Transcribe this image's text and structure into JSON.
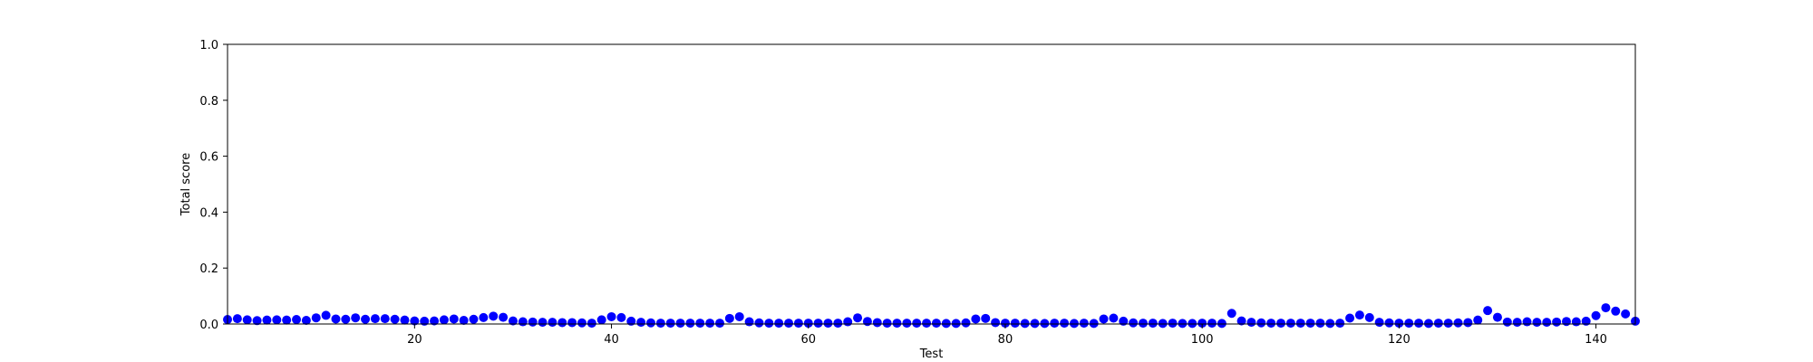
{
  "chart_data": {
    "type": "scatter",
    "xlabel": "Test",
    "ylabel": "Total score",
    "xlim": [
      1,
      144
    ],
    "ylim": [
      0,
      1.0
    ],
    "xticks": [
      20,
      40,
      60,
      80,
      100,
      120,
      140
    ],
    "xtick_labels": [
      "20",
      "40",
      "60",
      "80",
      "100",
      "120",
      "140"
    ],
    "yticks": [
      0,
      0.2,
      0.4,
      0.6,
      0.8,
      1.0
    ],
    "ytick_labels": [
      "0.0",
      "0.2",
      "0.4",
      "0.6",
      "0.8",
      "1.0"
    ],
    "grid": false,
    "colors": {
      "point": "#0000ff",
      "axes": "#000000"
    },
    "x": [
      1,
      2,
      3,
      4,
      5,
      6,
      7,
      8,
      9,
      10,
      11,
      12,
      13,
      14,
      15,
      16,
      17,
      18,
      19,
      20,
      21,
      22,
      23,
      24,
      25,
      26,
      27,
      28,
      29,
      30,
      31,
      32,
      33,
      34,
      35,
      36,
      37,
      38,
      39,
      40,
      41,
      42,
      43,
      44,
      45,
      46,
      47,
      48,
      49,
      50,
      51,
      52,
      53,
      54,
      55,
      56,
      57,
      58,
      59,
      60,
      61,
      62,
      63,
      64,
      65,
      66,
      67,
      68,
      69,
      70,
      71,
      72,
      73,
      74,
      75,
      76,
      77,
      78,
      79,
      80,
      81,
      82,
      83,
      84,
      85,
      86,
      87,
      88,
      89,
      90,
      91,
      92,
      93,
      94,
      95,
      96,
      97,
      98,
      99,
      100,
      101,
      102,
      103,
      104,
      105,
      106,
      107,
      108,
      109,
      110,
      111,
      112,
      113,
      114,
      115,
      116,
      117,
      118,
      119,
      120,
      121,
      122,
      123,
      124,
      125,
      126,
      127,
      128,
      129,
      130,
      131,
      132,
      133,
      134,
      135,
      136,
      137,
      138,
      139,
      140,
      141,
      142,
      143,
      144
    ],
    "y": [
      0.016,
      0.019,
      0.015,
      0.012,
      0.014,
      0.015,
      0.014,
      0.016,
      0.013,
      0.022,
      0.031,
      0.018,
      0.017,
      0.022,
      0.017,
      0.019,
      0.019,
      0.017,
      0.014,
      0.011,
      0.01,
      0.011,
      0.015,
      0.018,
      0.013,
      0.017,
      0.023,
      0.028,
      0.024,
      0.011,
      0.008,
      0.007,
      0.006,
      0.006,
      0.005,
      0.005,
      0.004,
      0.003,
      0.015,
      0.026,
      0.023,
      0.01,
      0.006,
      0.004,
      0.003,
      0.003,
      0.003,
      0.003,
      0.003,
      0.003,
      0.003,
      0.02,
      0.026,
      0.008,
      0.004,
      0.003,
      0.003,
      0.003,
      0.003,
      0.003,
      0.003,
      0.003,
      0.003,
      0.008,
      0.022,
      0.009,
      0.005,
      0.003,
      0.003,
      0.003,
      0.003,
      0.003,
      0.003,
      0.002,
      0.002,
      0.004,
      0.018,
      0.02,
      0.005,
      0.003,
      0.003,
      0.002,
      0.002,
      0.002,
      0.003,
      0.003,
      0.002,
      0.003,
      0.002,
      0.018,
      0.021,
      0.01,
      0.004,
      0.003,
      0.003,
      0.002,
      0.003,
      0.002,
      0.002,
      0.003,
      0.003,
      0.002,
      0.038,
      0.011,
      0.006,
      0.004,
      0.003,
      0.003,
      0.003,
      0.003,
      0.003,
      0.003,
      0.002,
      0.003,
      0.021,
      0.032,
      0.023,
      0.006,
      0.004,
      0.003,
      0.003,
      0.003,
      0.002,
      0.003,
      0.003,
      0.004,
      0.005,
      0.014,
      0.048,
      0.024,
      0.007,
      0.006,
      0.008,
      0.006,
      0.006,
      0.007,
      0.009,
      0.008,
      0.01,
      0.03,
      0.058,
      0.046,
      0.036,
      0.01
    ]
  }
}
